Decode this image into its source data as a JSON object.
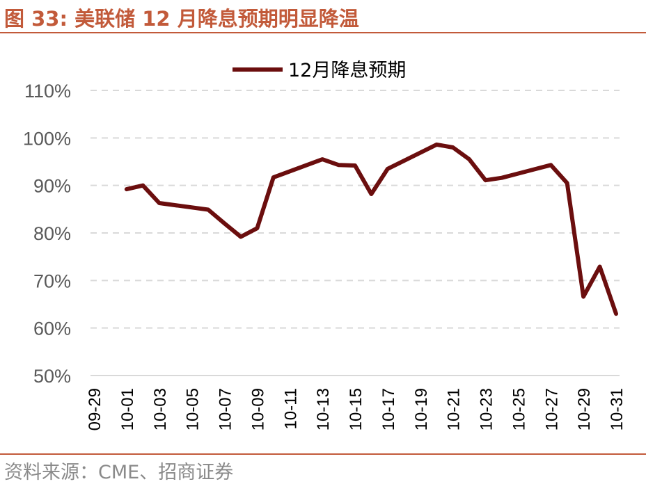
{
  "header": {
    "title": "图 33:  美联储 12 月降息预期明显降温"
  },
  "footer": {
    "source": "资料来源：CME、招商证券"
  },
  "colors": {
    "accent": "#c25a3a",
    "series": "#6b0e0e",
    "grid": "#d9d9d9"
  },
  "chart_data": {
    "type": "line",
    "title": "",
    "xlabel": "",
    "ylabel": "",
    "ylim": [
      0.5,
      1.1
    ],
    "y_ticks": [
      "50%",
      "60%",
      "70%",
      "80%",
      "90%",
      "100%",
      "110%"
    ],
    "x_ticks": [
      "09-29",
      "10-01",
      "10-03",
      "10-05",
      "10-07",
      "10-09",
      "10-11",
      "10-13",
      "10-15",
      "10-17",
      "10-19",
      "10-21",
      "10-23",
      "10-25",
      "10-27",
      "10-29",
      "10-31"
    ],
    "grid": true,
    "legend_position": "top-center",
    "series": [
      {
        "name": "12月降息预期",
        "points": [
          [
            "10-01",
            0.892
          ],
          [
            "10-02",
            0.9
          ],
          [
            "10-03",
            0.863
          ],
          [
            "10-06",
            0.849
          ],
          [
            "10-07",
            0.82
          ],
          [
            "10-08",
            0.792
          ],
          [
            "10-09",
            0.81
          ],
          [
            "10-10",
            0.917
          ],
          [
            "10-13",
            0.955
          ],
          [
            "10-14",
            0.943
          ],
          [
            "10-15",
            0.942
          ],
          [
            "10-16",
            0.882
          ],
          [
            "10-17",
            0.935
          ],
          [
            "10-20",
            0.986
          ],
          [
            "10-21",
            0.98
          ],
          [
            "10-22",
            0.955
          ],
          [
            "10-23",
            0.911
          ],
          [
            "10-24",
            0.916
          ],
          [
            "10-27",
            0.943
          ],
          [
            "10-28",
            0.905
          ],
          [
            "10-29",
            0.666
          ],
          [
            "10-30",
            0.729
          ],
          [
            "10-31",
            0.63
          ]
        ]
      }
    ]
  }
}
